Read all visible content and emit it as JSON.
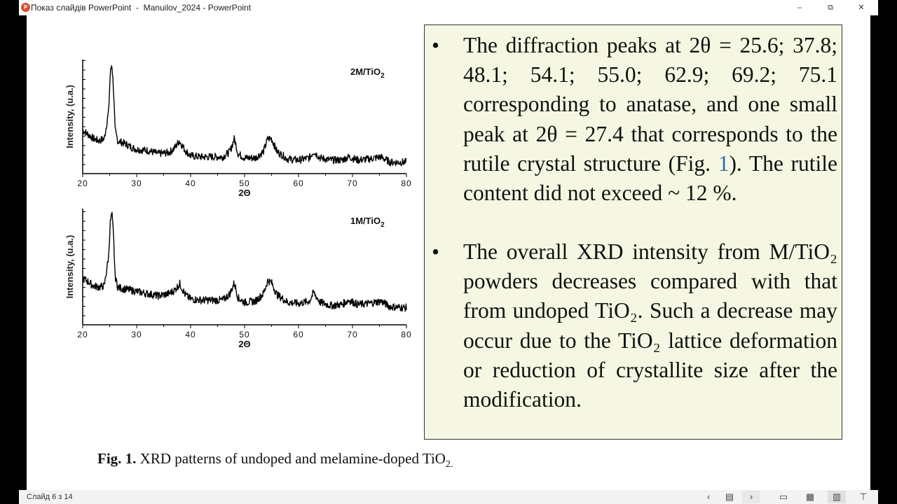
{
  "window": {
    "app_icon": "P",
    "title": "Показ слайдів PowerPoint  -  Manuilov_2024 - PowerPoint",
    "minimize": "–",
    "restore": "⧉",
    "close": "✕"
  },
  "slide": {
    "bullets": [
      {
        "dot": "•",
        "text_before": "The diffraction peaks at 2θ = 25.6; 37.8; 48.1; 54.1; 55.0; 62.9; 69.2; 75.1 corresponding to anatase, and one small peak at 2θ = 27.4 that corresponds to the rutile crystal structure (Fig. ",
        "link": "1",
        "text_after": "). The rutile content did not exceed ~ 12 %."
      },
      {
        "dot": "•",
        "text": "The overall XRD intensity from M/TiO₂ powders decreases compared with that from undoped TiO₂. Such a decrease may occur due to the TiO₂ lattice deformation or reduction of crystallite size after the modification."
      }
    ],
    "caption": {
      "bold": "Fig. 1.",
      "text": " XRD patterns of undoped and melamine-doped TiO",
      "sub": "2."
    }
  },
  "status_bar": {
    "slide_counter": "Слайд 6 з 14",
    "buttons": [
      {
        "name": "previous",
        "glyph": "‹"
      },
      {
        "name": "slide-menu",
        "glyph": "▤"
      },
      {
        "name": "next",
        "glyph": "›"
      },
      {
        "name": "normal-view",
        "glyph": "▭"
      },
      {
        "name": "slide-sorter",
        "glyph": "▦"
      },
      {
        "name": "reading-view",
        "glyph": "▥"
      },
      {
        "name": "slide-show",
        "glyph": "⊤"
      }
    ]
  },
  "chart_data": [
    {
      "type": "line",
      "title": "2M/TiO2",
      "xlabel": "2Θ",
      "ylabel": "Intensity, (u.a.)",
      "xlim": [
        20,
        80
      ],
      "xticks": [
        20,
        30,
        40,
        50,
        60,
        70,
        80
      ],
      "grid": false,
      "peaks_2theta": [
        25.4,
        37.9,
        48.1,
        54.6,
        62.8,
        69.3,
        75.2
      ],
      "series": [
        {
          "name": "2M/TiO2",
          "x": [
            20,
            21,
            22,
            23,
            24,
            24.8,
            25.1,
            25.4,
            25.7,
            26.0,
            26.5,
            27,
            28,
            29,
            30,
            32,
            34,
            36,
            37,
            37.9,
            39,
            40,
            42,
            44,
            46,
            47.3,
            48.1,
            48.8,
            50,
            52,
            53.5,
            54.3,
            55,
            56,
            58,
            60,
            62,
            62.8,
            64,
            66,
            68,
            69.3,
            71,
            73,
            75.2,
            77,
            80
          ],
          "y": [
            0.38,
            0.34,
            0.3,
            0.28,
            0.3,
            0.55,
            0.9,
            1.0,
            0.78,
            0.38,
            0.28,
            0.27,
            0.25,
            0.22,
            0.2,
            0.19,
            0.16,
            0.17,
            0.21,
            0.28,
            0.19,
            0.14,
            0.13,
            0.13,
            0.13,
            0.18,
            0.3,
            0.16,
            0.12,
            0.12,
            0.18,
            0.3,
            0.3,
            0.18,
            0.11,
            0.1,
            0.12,
            0.18,
            0.12,
            0.1,
            0.1,
            0.13,
            0.1,
            0.11,
            0.13,
            0.08,
            0.08
          ]
        }
      ]
    },
    {
      "type": "line",
      "title": "1M/TiO2",
      "xlabel": "2Θ",
      "ylabel": "Intensity, (u.a.)",
      "xlim": [
        20,
        80
      ],
      "xticks": [
        20,
        30,
        40,
        50,
        60,
        70,
        80
      ],
      "grid": false,
      "peaks_2theta": [
        25.4,
        38.0,
        48.1,
        54.7,
        62.8,
        69.3,
        75.3
      ],
      "series": [
        {
          "name": "1M/TiO2",
          "x": [
            20,
            21,
            22,
            23,
            24,
            24.8,
            25.1,
            25.4,
            25.7,
            26.0,
            26.5,
            27,
            28,
            29,
            30,
            32,
            34,
            36,
            37,
            38.0,
            39,
            40,
            42,
            44,
            46,
            47.3,
            48.1,
            48.8,
            50,
            52,
            53.5,
            54.3,
            55,
            56,
            58,
            60,
            62,
            62.8,
            64,
            66,
            68,
            69.3,
            71,
            73,
            75.3,
            77,
            80
          ],
          "y": [
            0.4,
            0.37,
            0.33,
            0.32,
            0.33,
            0.6,
            0.9,
            1.0,
            0.8,
            0.42,
            0.32,
            0.31,
            0.3,
            0.29,
            0.28,
            0.26,
            0.24,
            0.26,
            0.29,
            0.35,
            0.25,
            0.21,
            0.2,
            0.2,
            0.2,
            0.26,
            0.36,
            0.22,
            0.18,
            0.19,
            0.26,
            0.38,
            0.36,
            0.25,
            0.18,
            0.17,
            0.19,
            0.27,
            0.18,
            0.15,
            0.16,
            0.2,
            0.16,
            0.17,
            0.19,
            0.14,
            0.13
          ]
        }
      ]
    }
  ]
}
